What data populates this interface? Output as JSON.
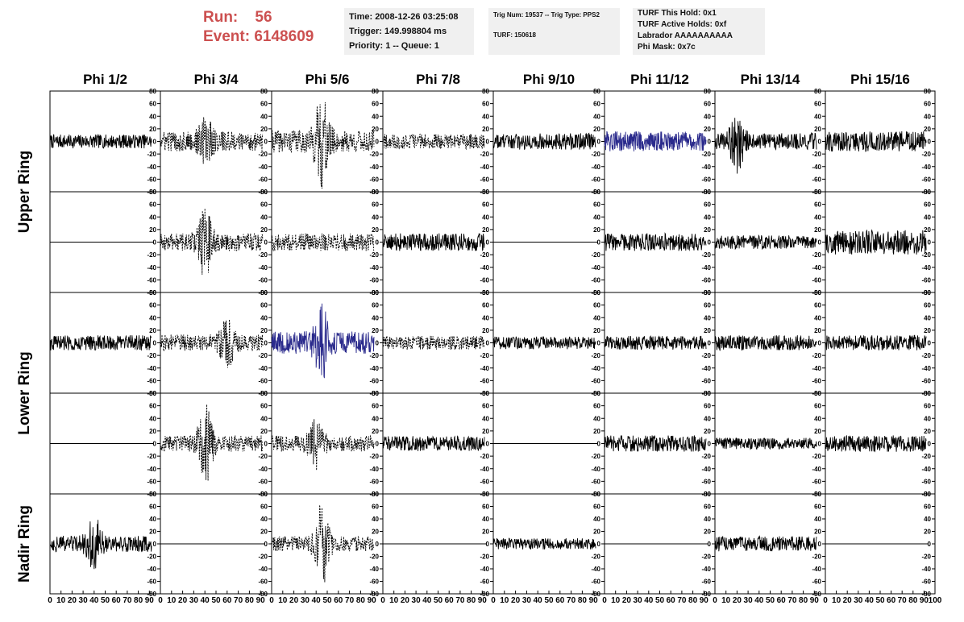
{
  "header": {
    "run_label": "Run:",
    "run_value": "56",
    "event_label": "Event:",
    "event_value": "6148609",
    "time": "Time: 2008-12-26 03:25:08",
    "trigger": "Trigger: 149.998804 ms",
    "priority": "Priority: 1 -- Queue: 1",
    "trig_num": "Trig Num: 19537 -- Trig Type: PPS2",
    "turf": "TURF: 150618",
    "turf_this_hold": "TURF This Hold: 0x1",
    "turf_active_holds": "TURF Active Holds: 0xf",
    "labrador": "Labrador AAAAAAAAAA",
    "phi_mask": "Phi Mask: 0x7c"
  },
  "chart_data": {
    "type": "line",
    "columns": [
      "Phi 1/2",
      "Phi 3/4",
      "Phi 5/6",
      "Phi 7/8",
      "Phi 9/10",
      "Phi 11/12",
      "Phi 13/14",
      "Phi 15/16"
    ],
    "ring_labels": [
      {
        "label": "Upper Ring",
        "rows": [
          0,
          1
        ]
      },
      {
        "label": "Lower Ring",
        "rows": [
          2,
          3
        ]
      },
      {
        "label": "Nadir Ring",
        "rows": [
          4
        ]
      }
    ],
    "xlim": [
      0,
      100
    ],
    "ylim": [
      -80,
      80
    ],
    "y_ticks": [
      "80",
      "60",
      "40",
      "20",
      "0",
      "-20",
      "-40",
      "-60",
      "-80"
    ],
    "x_ticks": [
      "0",
      "10",
      "20",
      "30",
      "40",
      "50",
      "60",
      "70",
      "80",
      "90",
      "100"
    ],
    "colors": {
      "solid": "#000000",
      "highlight": "#2a2a8c"
    },
    "panels": [
      [
        {
          "style": "solid",
          "amp": 11
        },
        {
          "style": "dashed",
          "amp": 16,
          "burst": [
            40,
            30
          ]
        },
        {
          "style": "dashed",
          "amp": 18,
          "burst": [
            45,
            60
          ]
        },
        {
          "style": "dashed",
          "amp": 12
        },
        {
          "style": "solid",
          "amp": 13
        },
        {
          "style": "highlight",
          "amp": 16
        },
        {
          "style": "solid",
          "amp": 13,
          "burst": [
            20,
            40
          ]
        },
        {
          "style": "solid",
          "amp": 16
        }
      ],
      [
        {
          "style": "flat"
        },
        {
          "style": "dashed",
          "amp": 14,
          "burst": [
            40,
            45
          ]
        },
        {
          "style": "dashed",
          "amp": 14
        },
        {
          "style": "solid",
          "amp": 14
        },
        {
          "style": "flat"
        },
        {
          "style": "solid",
          "amp": 14
        },
        {
          "style": "solid",
          "amp": 11
        },
        {
          "style": "solid",
          "amp": 20
        }
      ],
      [
        {
          "style": "solid",
          "amp": 12
        },
        {
          "style": "dashed",
          "amp": 13,
          "burst": [
            60,
            30
          ]
        },
        {
          "style": "highlight",
          "amp": 18,
          "burst": [
            45,
            50
          ]
        },
        {
          "style": "dashed",
          "amp": 11
        },
        {
          "style": "solid",
          "amp": 10
        },
        {
          "style": "solid",
          "amp": 11
        },
        {
          "style": "solid",
          "amp": 12
        },
        {
          "style": "solid",
          "amp": 12
        }
      ],
      [
        {
          "style": "flat"
        },
        {
          "style": "dashed",
          "amp": 13,
          "burst": [
            40,
            60
          ]
        },
        {
          "style": "dashed",
          "amp": 13,
          "burst": [
            40,
            30
          ]
        },
        {
          "style": "solid",
          "amp": 12
        },
        {
          "style": "flat"
        },
        {
          "style": "solid",
          "amp": 13
        },
        {
          "style": "solid",
          "amp": 9
        },
        {
          "style": "solid",
          "amp": 13
        }
      ],
      [
        {
          "style": "solid",
          "amp": 13,
          "burst": [
            40,
            35
          ]
        },
        {
          "style": "flat"
        },
        {
          "style": "dashed",
          "amp": 12,
          "burst": [
            45,
            60
          ]
        },
        {
          "style": "flat"
        },
        {
          "style": "solid",
          "amp": 9
        },
        {
          "style": "flat"
        },
        {
          "style": "solid",
          "amp": 12
        },
        {
          "style": "flat"
        }
      ]
    ]
  }
}
